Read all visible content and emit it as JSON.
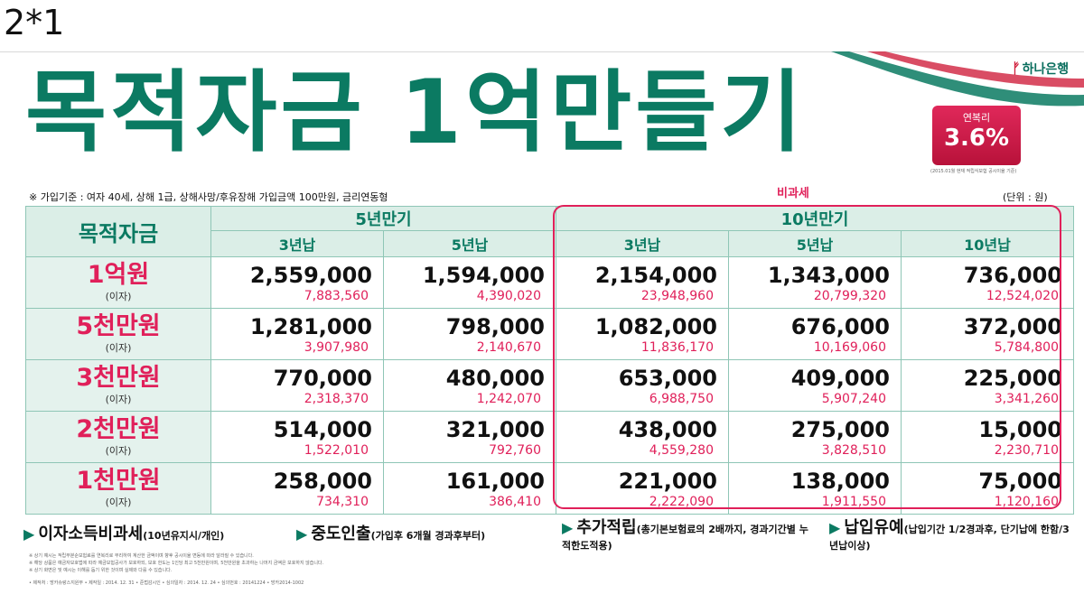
{
  "corner_label": "2*1",
  "brand": {
    "logo_text": "하나은행",
    "logo_mark": "ᚠ"
  },
  "title": "목적자금 1억만들기",
  "rate": {
    "label": "연복리",
    "value": "3.6%",
    "note": "(2015.01월 현재 적립식보험 공시이율 기준)"
  },
  "criteria": "※ 가입기준 : 여자 40세, 상해 1급, 상해사망/후유장해 가입금액 100만원, 금리연동형",
  "tax_free_label": "비과세",
  "unit": "(단위 : 원)",
  "table": {
    "corner": "목적자금",
    "groups": [
      "5년만기",
      "10년만기"
    ],
    "subs": [
      "3년납",
      "5년납",
      "3년납",
      "5년납",
      "10년납"
    ],
    "interest_label": "(이자)",
    "rows": [
      {
        "amount": "1억원",
        "cells": [
          {
            "pay": "2,559,000",
            "int": "7,883,560"
          },
          {
            "pay": "1,594,000",
            "int": "4,390,020"
          },
          {
            "pay": "2,154,000",
            "int": "23,948,960"
          },
          {
            "pay": "1,343,000",
            "int": "20,799,320"
          },
          {
            "pay": "736,000",
            "int": "12,524,020"
          }
        ]
      },
      {
        "amount": "5천만원",
        "cells": [
          {
            "pay": "1,281,000",
            "int": "3,907,980"
          },
          {
            "pay": "798,000",
            "int": "2,140,670"
          },
          {
            "pay": "1,082,000",
            "int": "11,836,170"
          },
          {
            "pay": "676,000",
            "int": "10,169,060"
          },
          {
            "pay": "372,000",
            "int": "5,784,800"
          }
        ]
      },
      {
        "amount": "3천만원",
        "cells": [
          {
            "pay": "770,000",
            "int": "2,318,370"
          },
          {
            "pay": "480,000",
            "int": "1,242,070"
          },
          {
            "pay": "653,000",
            "int": "6,988,750"
          },
          {
            "pay": "409,000",
            "int": "5,907,240"
          },
          {
            "pay": "225,000",
            "int": "3,341,260"
          }
        ]
      },
      {
        "amount": "2천만원",
        "cells": [
          {
            "pay": "514,000",
            "int": "1,522,010"
          },
          {
            "pay": "321,000",
            "int": "792,760"
          },
          {
            "pay": "438,000",
            "int": "4,559,280"
          },
          {
            "pay": "275,000",
            "int": "3,828,510"
          },
          {
            "pay": "15,000",
            "int": "2,230,710"
          }
        ]
      },
      {
        "amount": "1천만원",
        "cells": [
          {
            "pay": "258,000",
            "int": "734,310"
          },
          {
            "pay": "161,000",
            "int": "386,410"
          },
          {
            "pay": "221,000",
            "int": "2,222,090"
          },
          {
            "pay": "138,000",
            "int": "1,911,550"
          },
          {
            "pay": "75,000",
            "int": "1,120,160"
          }
        ]
      }
    ]
  },
  "features": [
    {
      "main": "이자소득비과세",
      "detail": "(10년유지시/개인)"
    },
    {
      "main": "중도인출",
      "detail": "(가입후 6개월 경과후부터)"
    },
    {
      "main": "추가적립",
      "detail": "(총기본보험료의 2배까지, 경과기간별 누적한도적용)"
    },
    {
      "main": "납입유예",
      "detail": "(납입기간 1/2경과후, 단기납에 한함/3년납이상)"
    }
  ],
  "fine_print": [
    "※ 상기 예시는 적립부분순보험료를 연복리로 부리하여 계산한 금액이며 향후 공시이율 변동에 따라 달라질 수 있습니다.",
    "※ 해당 상품은 예금자보호법에 따라 예금보험공사가 보호하되, 보호 한도는 1인당 최고 5천만원이며, 5천만원을 초과하는 나머지 금액은 보호하지 않습니다.",
    "※ 상기 화면은 및 예시는 이해를 돕기 위한 것이며 실제와 다를 수 있습니다.",
    "• 제작처 : 방카슈랑스지원부 • 제작일 : 2014. 12. 31 • 준법감시인 • 심의일자 : 2014. 12. 24 • 심의번호 : 20141224 • 방카2014-1002"
  ]
}
